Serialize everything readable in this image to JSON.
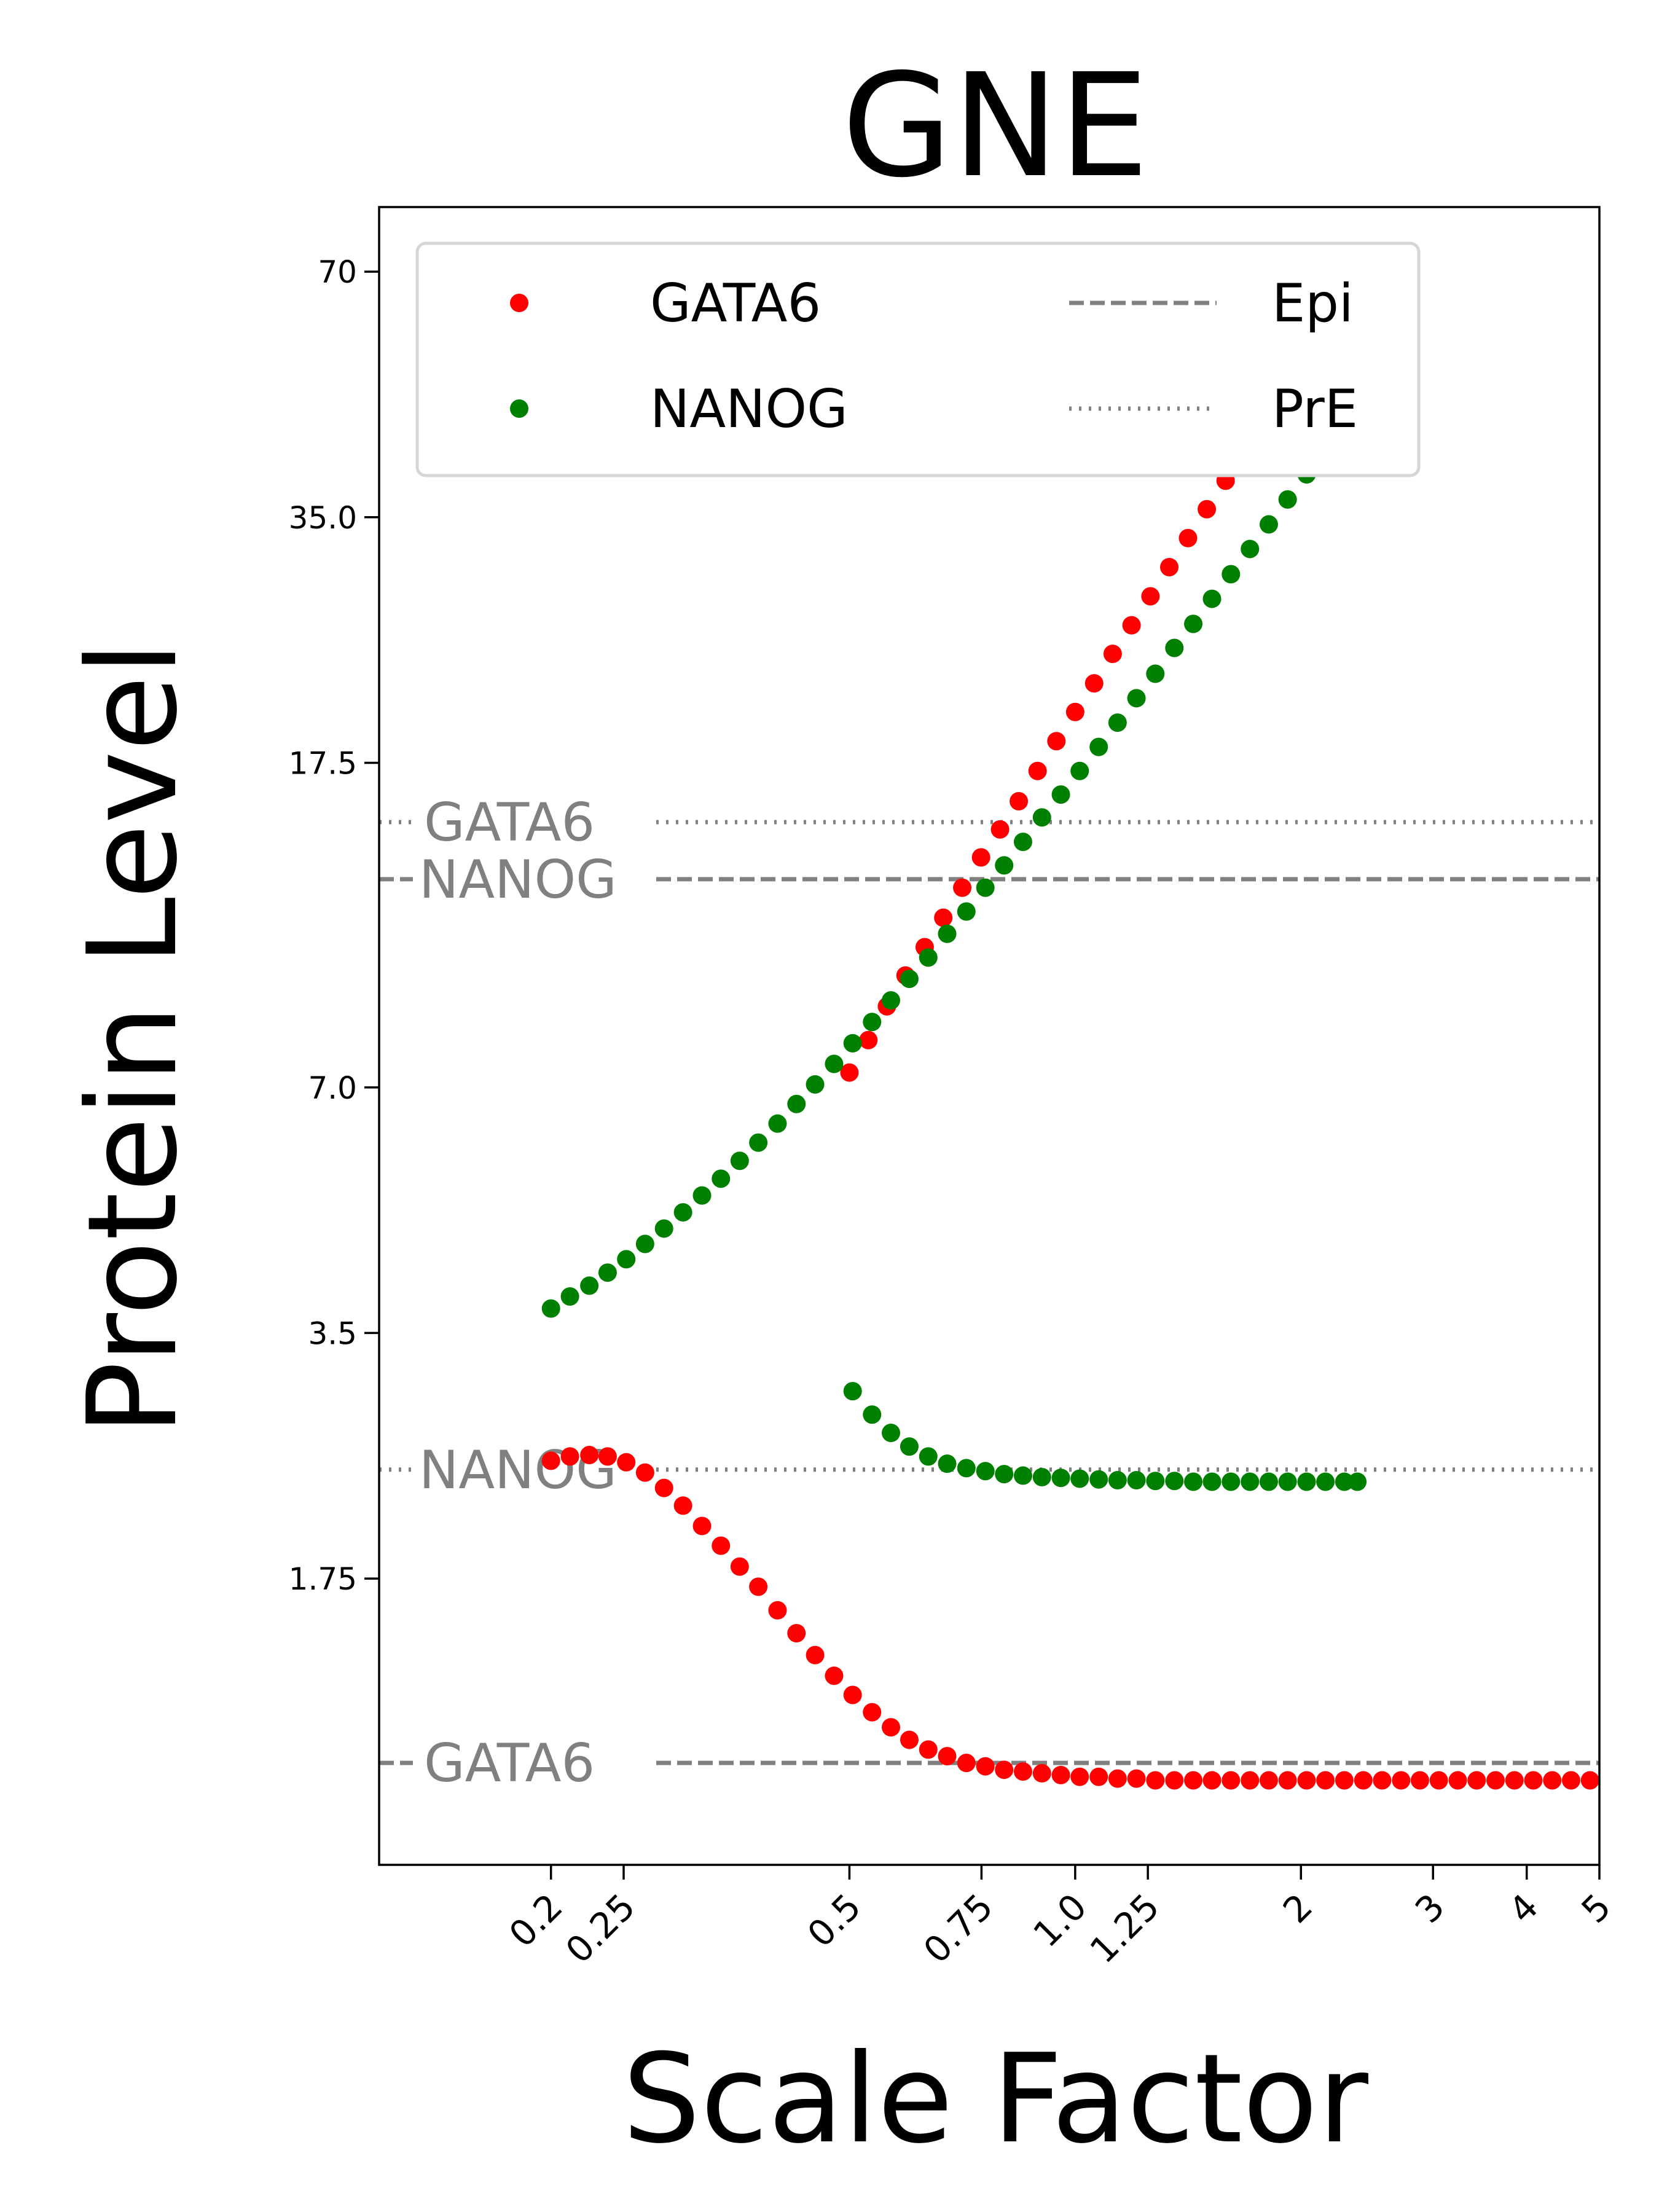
{
  "chart_data": {
    "type": "scatter",
    "title": "GNE",
    "xlabel": "Scale Factor",
    "ylabel": "Protein Level",
    "xscale": "log",
    "yscale": "log",
    "xlim": [
      0.118,
      5.0
    ],
    "ylim": [
      0.78,
      84.0
    ],
    "grid": false,
    "legend_position": "top",
    "xticks": [
      {
        "value": 0.2,
        "label": "0.2"
      },
      {
        "value": 0.25,
        "label": "0.25"
      },
      {
        "value": 0.5,
        "label": "0.5"
      },
      {
        "value": 0.75,
        "label": "0.75"
      },
      {
        "value": 1.0,
        "label": "1.0"
      },
      {
        "value": 1.25,
        "label": "1.25"
      },
      {
        "value": 2,
        "label": "2"
      },
      {
        "value": 3,
        "label": "3"
      },
      {
        "value": 4,
        "label": "4"
      },
      {
        "value": 5,
        "label": "5"
      }
    ],
    "yticks": [
      {
        "value": 1.75,
        "label": "1.75"
      },
      {
        "value": 3.5,
        "label": "3.5"
      },
      {
        "value": 7.0,
        "label": "7.0"
      },
      {
        "value": 17.5,
        "label": "17.5"
      },
      {
        "value": 35.0,
        "label": "35.0"
      },
      {
        "value": 70,
        "label": "70"
      }
    ],
    "series": [
      {
        "name": "GATA6",
        "color": "#ff0000",
        "points": [
          [
            0.2,
            2.44
          ],
          [
            0.212,
            2.47
          ],
          [
            0.225,
            2.48
          ],
          [
            0.238,
            2.47
          ],
          [
            0.252,
            2.43
          ],
          [
            0.267,
            2.36
          ],
          [
            0.283,
            2.26
          ],
          [
            0.3,
            2.15
          ],
          [
            0.318,
            2.03
          ],
          [
            0.337,
            1.92
          ],
          [
            0.357,
            1.81
          ],
          [
            0.378,
            1.71
          ],
          [
            0.401,
            1.6
          ],
          [
            0.425,
            1.5
          ],
          [
            0.45,
            1.41
          ],
          [
            0.477,
            1.33
          ],
          [
            0.505,
            1.26
          ],
          [
            0.536,
            1.2
          ],
          [
            0.568,
            1.15
          ],
          [
            0.601,
            1.11
          ],
          [
            0.637,
            1.08
          ],
          [
            0.675,
            1.06
          ],
          [
            0.716,
            1.04
          ],
          [
            0.759,
            1.03
          ],
          [
            0.804,
            1.02
          ],
          [
            0.852,
            1.015
          ],
          [
            0.903,
            1.01
          ],
          [
            0.957,
            1.005
          ],
          [
            1.014,
            1.0
          ],
          [
            1.075,
            1.0
          ],
          [
            1.139,
            0.995
          ],
          [
            1.207,
            0.995
          ],
          [
            1.279,
            0.99
          ],
          [
            1.356,
            0.99
          ],
          [
            1.437,
            0.99
          ],
          [
            1.522,
            0.99
          ],
          [
            1.613,
            0.99
          ],
          [
            1.71,
            0.99
          ],
          [
            1.812,
            0.99
          ],
          [
            1.92,
            0.99
          ],
          [
            2.035,
            0.99
          ],
          [
            2.156,
            0.99
          ],
          [
            2.285,
            0.99
          ],
          [
            2.422,
            0.99
          ],
          [
            2.566,
            0.99
          ],
          [
            2.72,
            0.99
          ],
          [
            2.882,
            0.99
          ],
          [
            3.054,
            0.99
          ],
          [
            3.237,
            0.99
          ],
          [
            3.43,
            0.99
          ],
          [
            3.635,
            0.99
          ],
          [
            3.852,
            0.99
          ],
          [
            4.082,
            0.99
          ],
          [
            4.326,
            0.99
          ],
          [
            4.584,
            0.99
          ],
          [
            4.858,
            0.99
          ],
          [
            0.5,
            7.3
          ],
          [
            0.53,
            8.0
          ],
          [
            0.561,
            8.8
          ],
          [
            0.594,
            9.6
          ],
          [
            0.63,
            10.4
          ],
          [
            0.667,
            11.3
          ],
          [
            0.707,
            12.3
          ],
          [
            0.749,
            13.4
          ],
          [
            0.794,
            14.5
          ],
          [
            0.841,
            15.7
          ],
          [
            0.891,
            17.1
          ],
          [
            0.944,
            18.6
          ],
          [
            1.0,
            20.2
          ],
          [
            1.06,
            21.9
          ],
          [
            1.122,
            23.8
          ],
          [
            1.189,
            25.8
          ],
          [
            1.26,
            28.0
          ],
          [
            1.335,
            30.4
          ],
          [
            1.414,
            33.0
          ],
          [
            1.498,
            35.8
          ],
          [
            1.587,
            38.8
          ],
          [
            1.682,
            42.0
          ],
          [
            1.782,
            45.5
          ],
          [
            1.888,
            49.3
          ],
          [
            2.0,
            53.4
          ],
          [
            2.119,
            57.8
          ],
          [
            2.245,
            62.6
          ],
          [
            2.378,
            67.8
          ]
        ]
      },
      {
        "name": "NANOG",
        "color": "#008000",
        "points": [
          [
            0.2,
            3.75
          ],
          [
            0.212,
            3.88
          ],
          [
            0.225,
            4.0
          ],
          [
            0.238,
            4.15
          ],
          [
            0.252,
            4.31
          ],
          [
            0.267,
            4.5
          ],
          [
            0.283,
            4.7
          ],
          [
            0.3,
            4.92
          ],
          [
            0.318,
            5.16
          ],
          [
            0.337,
            5.41
          ],
          [
            0.357,
            5.69
          ],
          [
            0.378,
            5.99
          ],
          [
            0.401,
            6.32
          ],
          [
            0.425,
            6.68
          ],
          [
            0.45,
            7.06
          ],
          [
            0.477,
            7.48
          ],
          [
            0.505,
            7.93
          ],
          [
            0.536,
            8.42
          ],
          [
            0.568,
            8.95
          ],
          [
            0.601,
            9.51
          ],
          [
            0.637,
            10.1
          ],
          [
            0.675,
            10.8
          ],
          [
            0.716,
            11.5
          ],
          [
            0.759,
            12.3
          ],
          [
            0.804,
            13.1
          ],
          [
            0.852,
            14.0
          ],
          [
            0.903,
            15.0
          ],
          [
            0.957,
            16.0
          ],
          [
            1.014,
            17.1
          ],
          [
            1.075,
            18.3
          ],
          [
            1.139,
            19.6
          ],
          [
            1.207,
            21.0
          ],
          [
            1.279,
            22.5
          ],
          [
            1.356,
            24.2
          ],
          [
            1.437,
            25.9
          ],
          [
            1.522,
            27.8
          ],
          [
            1.613,
            29.8
          ],
          [
            1.71,
            32.0
          ],
          [
            1.812,
            34.3
          ],
          [
            1.92,
            36.8
          ],
          [
            2.035,
            39.5
          ],
          [
            2.156,
            42.4
          ],
          [
            2.285,
            45.5
          ],
          [
            2.378,
            47.9
          ],
          [
            0.505,
            2.97
          ],
          [
            0.536,
            2.78
          ],
          [
            0.568,
            2.64
          ],
          [
            0.601,
            2.54
          ],
          [
            0.637,
            2.47
          ],
          [
            0.675,
            2.42
          ],
          [
            0.716,
            2.39
          ],
          [
            0.759,
            2.37
          ],
          [
            0.804,
            2.35
          ],
          [
            0.852,
            2.34
          ],
          [
            0.903,
            2.33
          ],
          [
            0.957,
            2.325
          ],
          [
            1.014,
            2.32
          ],
          [
            1.075,
            2.315
          ],
          [
            1.139,
            2.31
          ],
          [
            1.207,
            2.31
          ],
          [
            1.279,
            2.305
          ],
          [
            1.356,
            2.305
          ],
          [
            1.437,
            2.3
          ],
          [
            1.522,
            2.3
          ],
          [
            1.613,
            2.3
          ],
          [
            1.71,
            2.3
          ],
          [
            1.812,
            2.3
          ],
          [
            1.92,
            2.3
          ],
          [
            2.035,
            2.3
          ],
          [
            2.156,
            2.3
          ],
          [
            2.285,
            2.3
          ],
          [
            2.378,
            2.3
          ]
        ]
      }
    ],
    "reference_lines": [
      {
        "label": "GATA6",
        "value": 14.8,
        "style": "dotted",
        "state": "PrE"
      },
      {
        "label": "NANOG",
        "value": 12.6,
        "style": "dashed",
        "state": "Epi"
      },
      {
        "label": "NANOG",
        "value": 2.38,
        "style": "dotted",
        "state": "PrE"
      },
      {
        "label": "GATA6",
        "value": 1.04,
        "style": "dashed",
        "state": "Epi"
      }
    ],
    "legend": [
      {
        "label": "GATA6",
        "marker": "dot",
        "color": "#ff0000"
      },
      {
        "label": "NANOG",
        "marker": "dot",
        "color": "#008000"
      },
      {
        "label": "Epi",
        "marker": "dashed-line",
        "color": "#808080"
      },
      {
        "label": "PrE",
        "marker": "dotted-line",
        "color": "#808080"
      }
    ]
  }
}
